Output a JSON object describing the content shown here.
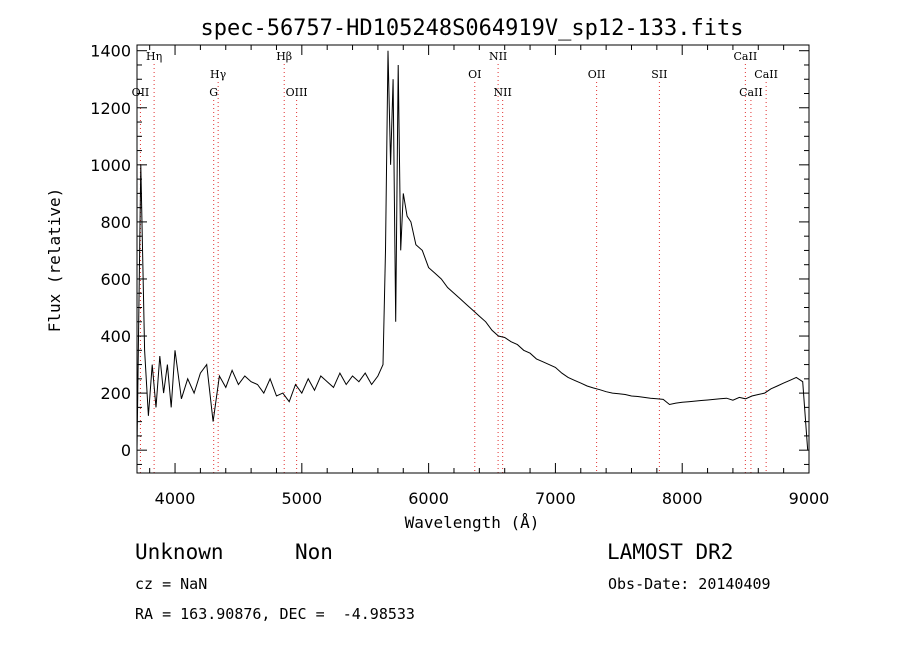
{
  "chart_data": {
    "type": "line",
    "title": "spec-56757-HD105248S064919V_sp12-133.fits",
    "xlabel": "Wavelength (Å)",
    "ylabel": "Flux (relative)",
    "xlim": [
      3700,
      9000
    ],
    "ylim": [
      -80,
      1420
    ],
    "x_ticks": [
      4000,
      5000,
      6000,
      7000,
      8000,
      9000
    ],
    "y_ticks": [
      0,
      200,
      400,
      600,
      800,
      1000,
      1200,
      1400
    ],
    "grid": false,
    "line_color": "#000000",
    "marker_color": "#e03030",
    "series": [
      {
        "x": [
          3700,
          3730,
          3760,
          3790,
          3820,
          3850,
          3880,
          3910,
          3940,
          3970,
          4000,
          4050,
          4100,
          4150,
          4200,
          4250,
          4300,
          4350,
          4400,
          4450,
          4500,
          4550,
          4600,
          4650,
          4700,
          4750,
          4800,
          4850,
          4900,
          4950,
          5000,
          5050,
          5100,
          5150,
          5200,
          5250,
          5300,
          5350,
          5400,
          5450,
          5500,
          5550,
          5600,
          5640,
          5660,
          5680,
          5700,
          5720,
          5740,
          5760,
          5780,
          5800,
          5830,
          5860,
          5900,
          5950,
          6000,
          6050,
          6100,
          6150,
          6200,
          6250,
          6300,
          6350,
          6400,
          6450,
          6500,
          6550,
          6600,
          6650,
          6700,
          6750,
          6800,
          6850,
          6900,
          6950,
          7000,
          7050,
          7100,
          7150,
          7200,
          7250,
          7300,
          7350,
          7400,
          7450,
          7500,
          7550,
          7600,
          7650,
          7700,
          7750,
          7800,
          7850,
          7900,
          7950,
          8000,
          8050,
          8100,
          8150,
          8200,
          8250,
          8300,
          8350,
          8400,
          8450,
          8500,
          8550,
          8600,
          8650,
          8700,
          8750,
          8800,
          8850,
          8900,
          8950,
          8990
        ],
        "values": [
          0,
          1000,
          350,
          120,
          300,
          150,
          330,
          200,
          300,
          150,
          350,
          180,
          250,
          200,
          270,
          300,
          100,
          260,
          220,
          280,
          230,
          260,
          240,
          230,
          200,
          250,
          190,
          200,
          170,
          230,
          200,
          250,
          210,
          260,
          240,
          220,
          270,
          230,
          260,
          240,
          270,
          230,
          260,
          300,
          700,
          1400,
          1000,
          1300,
          450,
          1350,
          700,
          900,
          820,
          800,
          720,
          700,
          640,
          620,
          600,
          570,
          550,
          530,
          510,
          490,
          470,
          450,
          420,
          400,
          395,
          380,
          370,
          350,
          340,
          320,
          310,
          300,
          290,
          270,
          255,
          245,
          235,
          225,
          218,
          212,
          205,
          200,
          198,
          195,
          190,
          188,
          185,
          182,
          180,
          178,
          160,
          165,
          168,
          170,
          172,
          174,
          176,
          178,
          180,
          182,
          175,
          185,
          180,
          190,
          195,
          200,
          215,
          225,
          235,
          245,
          255,
          240,
          0
        ]
      }
    ],
    "line_markers": [
      {
        "label": "Hη",
        "x": 3835,
        "row": 0
      },
      {
        "label": "OII",
        "x": 3727,
        "row": 2
      },
      {
        "label": "Hγ",
        "x": 4340,
        "row": 1
      },
      {
        "label": "G",
        "x": 4305,
        "row": 2
      },
      {
        "label": "Hβ",
        "x": 4861,
        "row": 0
      },
      {
        "label": "OIII",
        "x": 4959,
        "row": 2
      },
      {
        "label": "OI",
        "x": 6364,
        "row": 1
      },
      {
        "label": "NII",
        "x": 6548,
        "row": 0
      },
      {
        "label": "NII",
        "x": 6584,
        "row": 2
      },
      {
        "label": "OII",
        "x": 7325,
        "row": 1
      },
      {
        "label": "SII",
        "x": 7820,
        "row": 1
      },
      {
        "label": "CaII",
        "x": 8498,
        "row": 0
      },
      {
        "label": "CaII",
        "x": 8542,
        "row": 2
      },
      {
        "label": "CaII",
        "x": 8662,
        "row": 1
      }
    ]
  },
  "info": {
    "class_label": "Unknown",
    "subclass_label": "Non",
    "survey": "LAMOST DR2",
    "cz": "cz = NaN",
    "obs_date": "Obs-Date: 20140409",
    "coords": "RA = 163.90876, DEC =  -4.98533"
  }
}
